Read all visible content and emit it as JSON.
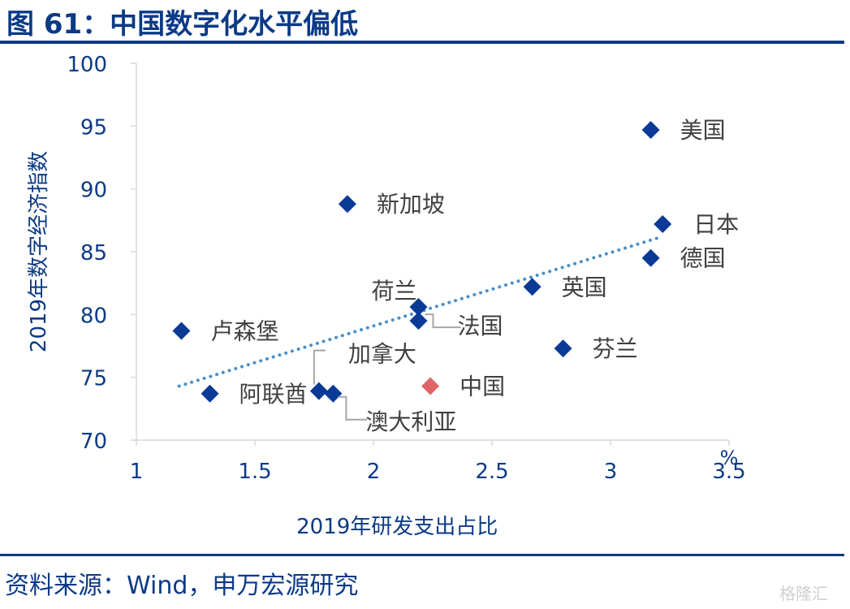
{
  "figure": {
    "title": "图 61：中国数字化水平偏低",
    "source": "资料来源：Wind，申万宏源研究",
    "watermark": "格隆汇"
  },
  "chart_data": {
    "type": "scatter",
    "title": "",
    "xlabel": "2019年研发支出占比",
    "ylabel": "2019年数字经济指数",
    "x_unit": "%",
    "xlim": [
      1,
      3.5
    ],
    "ylim": [
      70,
      100
    ],
    "xticks": [
      1,
      1.5,
      2,
      2.5,
      3,
      3.5
    ],
    "xtick_labels": [
      "1",
      "1.5",
      "2",
      "2.5",
      "3",
      "3.5"
    ],
    "yticks": [
      70,
      75,
      80,
      85,
      90,
      95,
      100
    ],
    "ytick_labels": [
      "70",
      "75",
      "80",
      "85",
      "90",
      "95",
      "100"
    ],
    "grid": false,
    "point_color": "#0b3a96",
    "highlight_color": "#e06666",
    "trendline_color": "#4a8fc8",
    "trendline": {
      "style": "dotted",
      "x": [
        1.18,
        3.2
      ],
      "y": [
        74.3,
        86.1
      ]
    },
    "points": [
      {
        "label": "美国",
        "x": 3.17,
        "y": 94.7
      },
      {
        "label": "新加坡",
        "x": 1.89,
        "y": 88.8
      },
      {
        "label": "日本",
        "x": 3.22,
        "y": 87.2
      },
      {
        "label": "德国",
        "x": 3.17,
        "y": 84.5
      },
      {
        "label": "英国",
        "x": 2.67,
        "y": 82.2
      },
      {
        "label": "荷兰",
        "x": 2.19,
        "y": 80.6
      },
      {
        "label": "法国",
        "x": 2.19,
        "y": 79.5
      },
      {
        "label": "卢森堡",
        "x": 1.19,
        "y": 78.7
      },
      {
        "label": "芬兰",
        "x": 2.8,
        "y": 77.3
      },
      {
        "label": "中国",
        "x": 2.24,
        "y": 74.3,
        "highlight": true
      },
      {
        "label": "加拿大",
        "x": 1.77,
        "y": 73.9
      },
      {
        "label": "澳大利亚",
        "x": 1.83,
        "y": 73.7
      },
      {
        "label": "阿联酋",
        "x": 1.31,
        "y": 73.7
      }
    ]
  }
}
